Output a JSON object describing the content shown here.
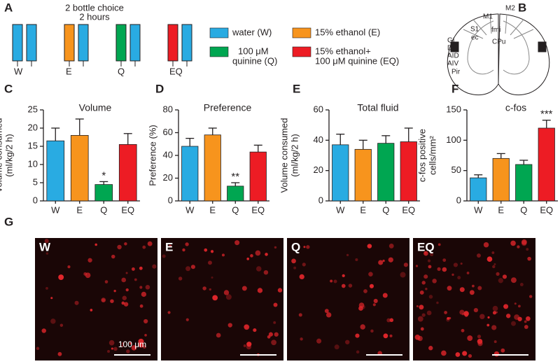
{
  "panels": [
    "A",
    "B",
    "C",
    "D",
    "E",
    "F",
    "G"
  ],
  "panel_a": {
    "title": [
      "2 bottle choice",
      "2 hours"
    ],
    "groups": [
      "W",
      "E",
      "Q",
      "EQ"
    ],
    "legend": [
      {
        "text": [
          "water (W)"
        ],
        "color": "#29abe2"
      },
      {
        "text": [
          "15% ethanol (E)"
        ],
        "color": "#f7941d"
      },
      {
        "text": [
          "100 μM",
          "quinine (Q)"
        ],
        "color": "#00a651"
      },
      {
        "text": [
          "15% ethanol+",
          "100 μM quinine (EQ)"
        ],
        "color": "#ed1c24"
      }
    ]
  },
  "panel_b": {
    "labels": [
      "M2",
      "M1",
      "S1",
      "ec",
      "fmi",
      "CPu",
      "GI",
      "DI",
      "AID",
      "AIV",
      "Pir"
    ]
  },
  "chart_data": [
    {
      "type": "bar",
      "title": "Volume",
      "ylabel": [
        "Volume consumed",
        "(ml/kg/2 h)"
      ],
      "categories": [
        "W",
        "E",
        "Q",
        "EQ"
      ],
      "values": [
        16.5,
        18,
        4.5,
        15.5
      ],
      "errors": [
        3.5,
        4.5,
        0.8,
        3
      ],
      "colors": [
        "#29abe2",
        "#f7941d",
        "#00a651",
        "#ed1c24"
      ],
      "ylim": [
        0,
        25
      ],
      "yticks": [
        0,
        5,
        10,
        15,
        20,
        25
      ],
      "annotations": [
        {
          "text": "*",
          "category": "Q"
        }
      ]
    },
    {
      "type": "bar",
      "title": "Preference",
      "ylabel": [
        "Preference (%)"
      ],
      "categories": [
        "W",
        "E",
        "Q",
        "EQ"
      ],
      "values": [
        48,
        58,
        13,
        43
      ],
      "errors": [
        7,
        6,
        3,
        6
      ],
      "colors": [
        "#29abe2",
        "#f7941d",
        "#00a651",
        "#ed1c24"
      ],
      "ylim": [
        0,
        80
      ],
      "yticks": [
        0,
        20,
        40,
        60,
        80
      ],
      "annotations": [
        {
          "text": "**",
          "category": "Q"
        }
      ]
    },
    {
      "type": "bar",
      "title": "Total fluid",
      "ylabel": [
        "Volume consumed",
        "(ml/kg/2 h)"
      ],
      "categories": [
        "W",
        "E",
        "Q",
        "EQ"
      ],
      "values": [
        37,
        34,
        38,
        39
      ],
      "errors": [
        7,
        6,
        5,
        9
      ],
      "colors": [
        "#29abe2",
        "#f7941d",
        "#00a651",
        "#ed1c24"
      ],
      "ylim": [
        0,
        60
      ],
      "yticks": [
        0,
        20,
        40,
        60
      ],
      "annotations": []
    },
    {
      "type": "bar",
      "title": "c-fos",
      "ylabel": [
        "c-fos positive",
        "cells/mm²"
      ],
      "categories": [
        "W",
        "E",
        "Q",
        "EQ"
      ],
      "values": [
        38,
        70,
        60,
        120
      ],
      "errors": [
        5,
        8,
        7,
        13
      ],
      "colors": [
        "#29abe2",
        "#f7941d",
        "#00a651",
        "#ed1c24"
      ],
      "ylim": [
        0,
        150
      ],
      "yticks": [
        0,
        50,
        100,
        150
      ],
      "annotations": [
        {
          "text": "***",
          "category": "EQ"
        }
      ]
    }
  ],
  "panel_g": {
    "images": [
      "W",
      "E",
      "Q",
      "EQ"
    ],
    "scale_bar": "100 μm"
  }
}
